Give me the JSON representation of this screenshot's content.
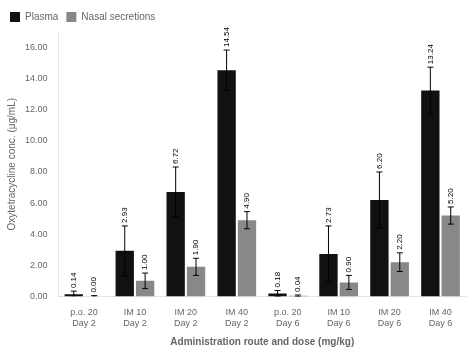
{
  "chart_data": {
    "type": "bar",
    "categories": [
      "p.o. 20\nDay 2",
      "IM 10\nDay 2",
      "IM 20\nDay 2",
      "IM 40\nDay 2",
      "p.o. 20\nDay 6",
      "IM 10\nDay 6",
      "IM 20\nDay 6",
      "IM 40\nDay 6"
    ],
    "series": [
      {
        "name": "Plasma",
        "color": "#111111",
        "values": [
          0.14,
          2.93,
          6.72,
          14.54,
          0.18,
          2.73,
          6.2,
          13.24
        ],
        "value_labels": [
          "0.14",
          "2.93",
          "6.72",
          "14.54",
          "0.18",
          "2.73",
          "6.20",
          "13.24"
        ],
        "errors": [
          0.2,
          1.6,
          1.6,
          1.3,
          0.2,
          1.8,
          1.8,
          1.5
        ]
      },
      {
        "name": "Nasal secretions",
        "color": "#888888",
        "values": [
          0.0,
          1.0,
          1.9,
          4.9,
          0.04,
          0.9,
          2.2,
          5.2
        ],
        "value_labels": [
          "0.00",
          "1.00",
          "1.90",
          "4.90",
          "0.04",
          "0.90",
          "2.20",
          "5.20"
        ],
        "errors": [
          0.05,
          0.5,
          0.55,
          0.55,
          0.05,
          0.45,
          0.6,
          0.55
        ]
      }
    ],
    "xlabel": "Administration route and dose (mg/kg)",
    "ylabel": "Oxytetracycline conc. (μg/mL)",
    "ylim": [
      0,
      17.0
    ],
    "yticks": [
      {
        "value": 0,
        "label": "0.00"
      },
      {
        "value": 2,
        "label": "2.00"
      },
      {
        "value": 4,
        "label": "4.00"
      },
      {
        "value": 6,
        "label": "6.00"
      },
      {
        "value": 8,
        "label": "8.00"
      },
      {
        "value": 10,
        "label": "10.00"
      },
      {
        "value": 12,
        "label": "12.00"
      },
      {
        "value": 14,
        "label": "14.00"
      },
      {
        "value": 16,
        "label": "16.00"
      }
    ],
    "grid": false,
    "legend": "upper left",
    "data_labels": true
  }
}
